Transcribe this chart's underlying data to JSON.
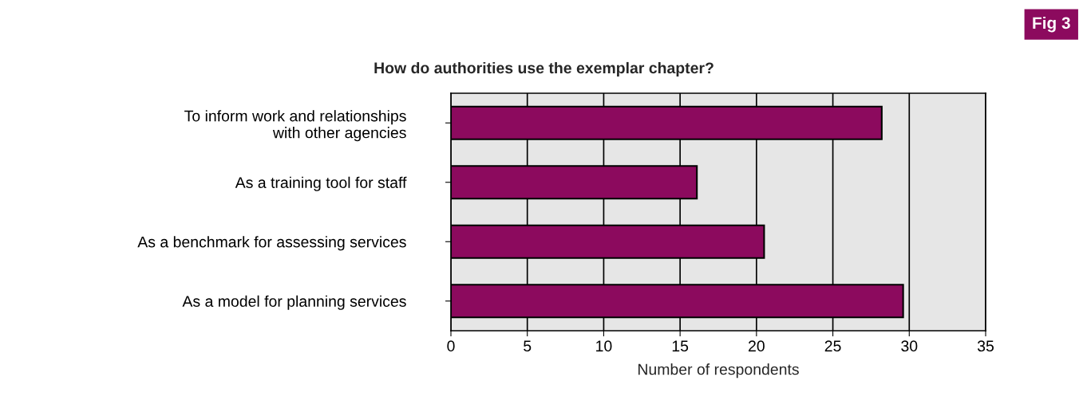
{
  "chart_data": {
    "type": "bar",
    "orientation": "horizontal",
    "title": "How do authorities use the exemplar chapter?",
    "categories": [
      "To inform work and relationships\nwith other agencies",
      "As a training tool for staff",
      "As a benchmark for assessing services",
      "As a model for planning services"
    ],
    "values": [
      28.2,
      16.1,
      20.5,
      29.6
    ],
    "color": "#8c0a5e",
    "xlabel": "Number of respondents",
    "xlim": [
      0,
      35
    ],
    "xticks": [
      0,
      5,
      10,
      15,
      20,
      25,
      30,
      35
    ],
    "grid": "x",
    "annotations": [
      "Fig 3"
    ]
  }
}
